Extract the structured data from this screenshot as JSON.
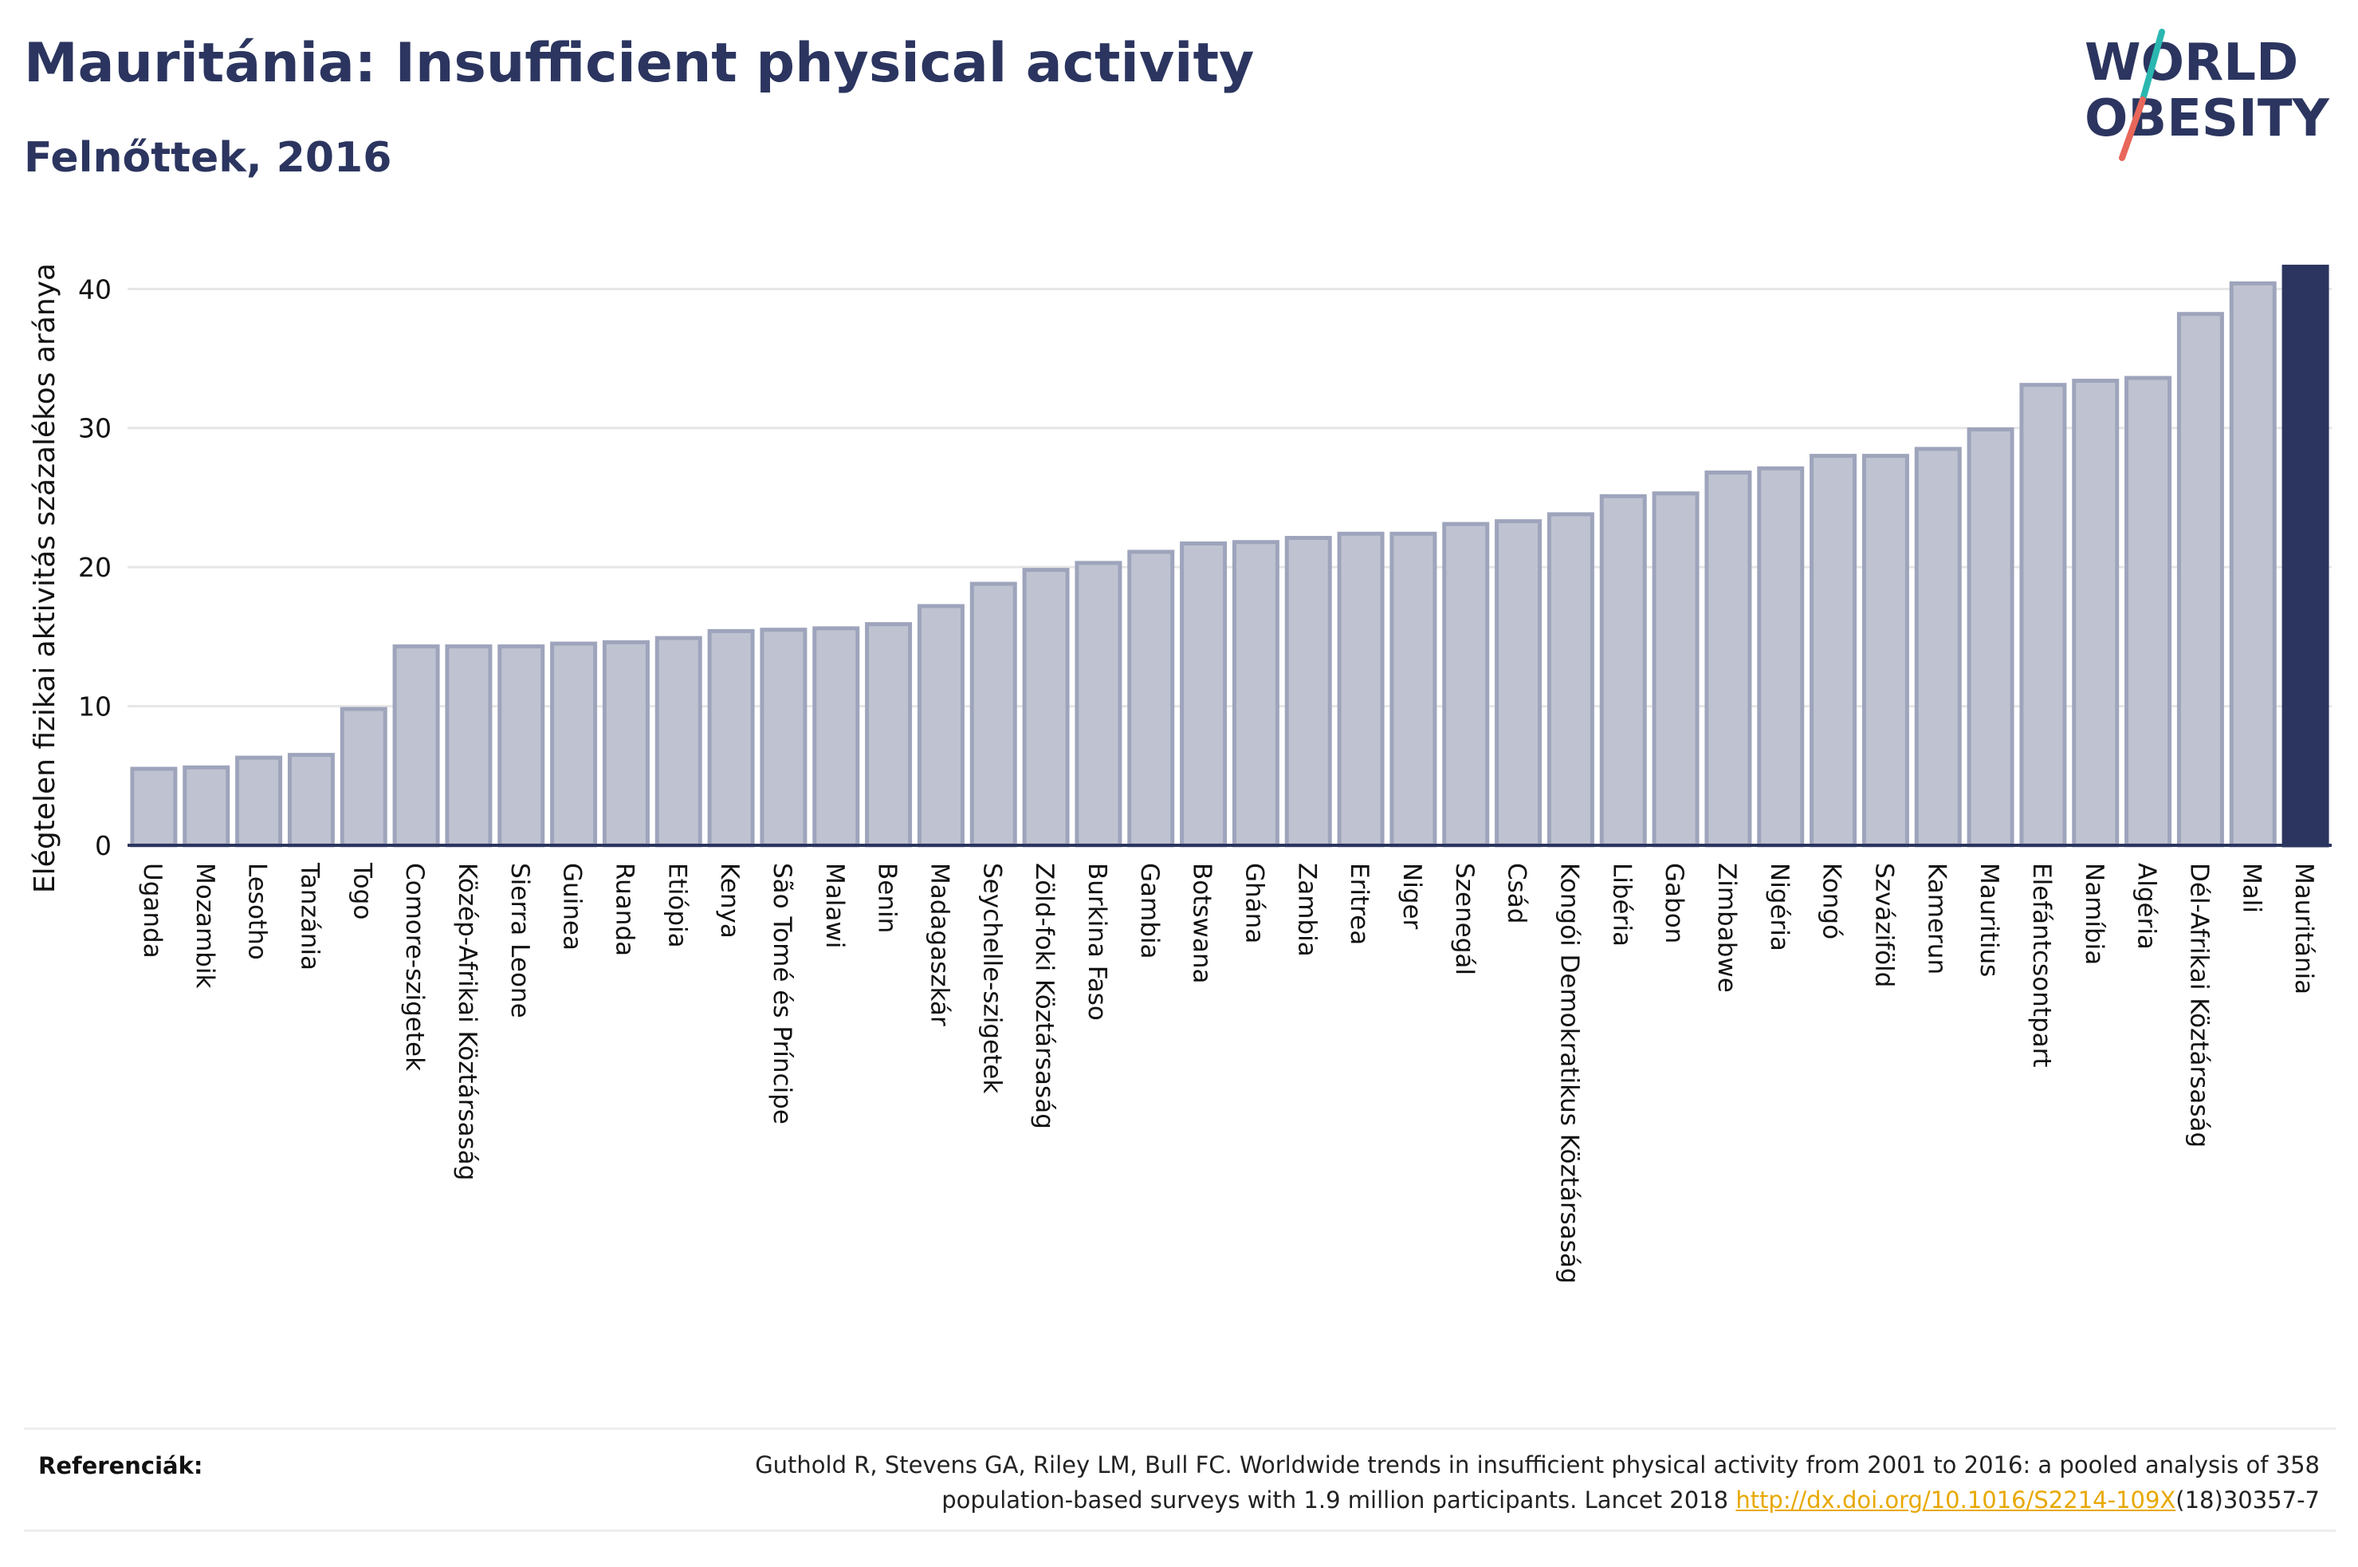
{
  "title": "Mauritánia: Insufficient physical activity",
  "subtitle": "Felnőttek, 2016",
  "logo": {
    "line1": "WORLD",
    "line2": "OBESITY"
  },
  "references": {
    "label": "Referenciák:",
    "text_line1": "Guthold R, Stevens GA, Riley LM, Bull FC. Worldwide trends in insufficient physical activity from 2001 to 2016: a pooled analysis of 358",
    "text_line2_before": "population-based surveys with 1.9 million participants. Lancet 2018 ",
    "link_text": "http://dx.doi.org/10.1016/S2214-109X",
    "text_line2_after": "(18)30357-7"
  },
  "colors": {
    "bar_fill": "#bfc3d1",
    "bar_stroke": "#9ea4bb",
    "highlight_fill": "#2b355f",
    "grid": "#e6e6e6",
    "axis": "#2b355f",
    "logo_text": "#2b355f",
    "logo_slash_teal": "#2ab7b0",
    "logo_slash_red": "#e8665a"
  },
  "chart_data": {
    "type": "bar",
    "ylabel": "Elégtelen fizikai aktivitás százalékos aránya",
    "xlabel": "",
    "ylim": [
      0,
      43
    ],
    "yticks": [
      0,
      10,
      20,
      30,
      40
    ],
    "grid": true,
    "highlight": "Mauritánia",
    "categories": [
      "Uganda",
      "Mozambik",
      "Lesotho",
      "Tanzánia",
      "Togo",
      "Comore-szigetek",
      "Közép-Afrikai Köztársaság",
      "Sierra Leone",
      "Guinea",
      "Ruanda",
      "Etiópia",
      "Kenya",
      "São Tomé és Príncipe",
      "Malawi",
      "Benin",
      "Madagaszkár",
      "Seychelle-szigetek",
      "Zöld-foki Köztársaság",
      "Burkina Faso",
      "Gambia",
      "Botswana",
      "Ghána",
      "Zambia",
      "Eritrea",
      "Niger",
      "Szenegál",
      "Csád",
      "Kongói Demokratikus Köztársaság",
      "Libéria",
      "Gabon",
      "Zimbabwe",
      "Nigéria",
      "Kongó",
      "Szváziföld",
      "Kamerun",
      "Mauritius",
      "Elefántcsontpart",
      "Namíbia",
      "Algéria",
      "Dél-Afrikai Köztársaság",
      "Mali",
      "Mauritánia"
    ],
    "values": [
      5.5,
      5.6,
      6.3,
      6.5,
      9.8,
      14.3,
      14.3,
      14.3,
      14.5,
      14.6,
      14.9,
      15.4,
      15.5,
      15.6,
      15.9,
      17.2,
      18.8,
      19.8,
      20.3,
      21.1,
      21.7,
      21.8,
      22.1,
      22.4,
      22.4,
      23.1,
      23.3,
      23.8,
      25.1,
      25.3,
      26.8,
      27.1,
      28.0,
      28.0,
      28.5,
      29.9,
      33.1,
      33.4,
      33.6,
      38.2,
      40.4,
      41.6
    ]
  }
}
